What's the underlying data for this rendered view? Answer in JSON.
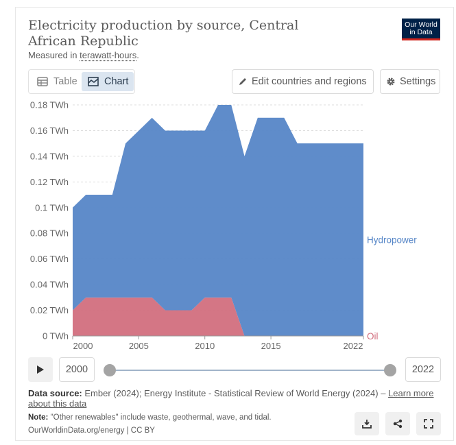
{
  "header": {
    "title": "Electricity production by source, Central African Republic",
    "subtitle_prefix": "Measured in",
    "subtitle_unit": "terawatt-hours",
    "subtitle_suffix": ".",
    "logo_line1": "Our World",
    "logo_line2": "in Data"
  },
  "toolbar": {
    "tab_table": "Table",
    "tab_chart": "Chart",
    "edit_button": "Edit countries and regions",
    "settings_button": "Settings",
    "active_tab": "Chart"
  },
  "chart_data": {
    "type": "area",
    "stacked": true,
    "x": [
      2000,
      2001,
      2002,
      2003,
      2004,
      2005,
      2006,
      2007,
      2008,
      2009,
      2010,
      2011,
      2012,
      2013,
      2014,
      2015,
      2016,
      2017,
      2018,
      2019,
      2020,
      2021,
      2022
    ],
    "series": [
      {
        "name": "Oil",
        "color": "#d26f7e",
        "values": [
          0.02,
          0.03,
          0.03,
          0.03,
          0.03,
          0.03,
          0.03,
          0.02,
          0.02,
          0.02,
          0.03,
          0.03,
          0.03,
          0,
          0,
          0,
          0,
          0,
          0,
          0,
          0,
          0,
          0
        ]
      },
      {
        "name": "Hydropower",
        "color": "#5686c7",
        "values": [
          0.08,
          0.08,
          0.08,
          0.08,
          0.12,
          0.13,
          0.14,
          0.14,
          0.14,
          0.14,
          0.13,
          0.15,
          0.15,
          0.14,
          0.17,
          0.17,
          0.17,
          0.15,
          0.15,
          0.15,
          0.15,
          0.15,
          0.15
        ]
      }
    ],
    "ylim": [
      0,
      0.18
    ],
    "yticks": [
      0,
      0.02,
      0.04,
      0.06,
      0.08,
      0.1,
      0.12,
      0.14,
      0.16,
      0.18
    ],
    "ytick_labels": [
      "0 TWh",
      "0.02 TWh",
      "0.04 TWh",
      "0.06 TWh",
      "0.08 TWh",
      "0.1 TWh",
      "0.12 TWh",
      "0.14 TWh",
      "0.16 TWh",
      "0.18 TWh"
    ],
    "xticks": [
      2000,
      2005,
      2010,
      2015,
      2022
    ],
    "xtick_labels": [
      "2000",
      "2005",
      "2010",
      "2015",
      "2022"
    ],
    "grid": "horizontal dashed",
    "legend": "labels at right end of series"
  },
  "timeline": {
    "start_year": "2000",
    "end_year": "2022"
  },
  "footer": {
    "source_label": "Data source:",
    "source_text": "Ember (2024); Energy Institute - Statistical Review of World Energy (2024) –",
    "learn_more": "Learn more about this data",
    "note_label": "Note:",
    "note_text": "\"Other renewables\" include waste, geothermal, wave, and tidal.",
    "credit": "OurWorldinData.org/energy | CC BY"
  }
}
